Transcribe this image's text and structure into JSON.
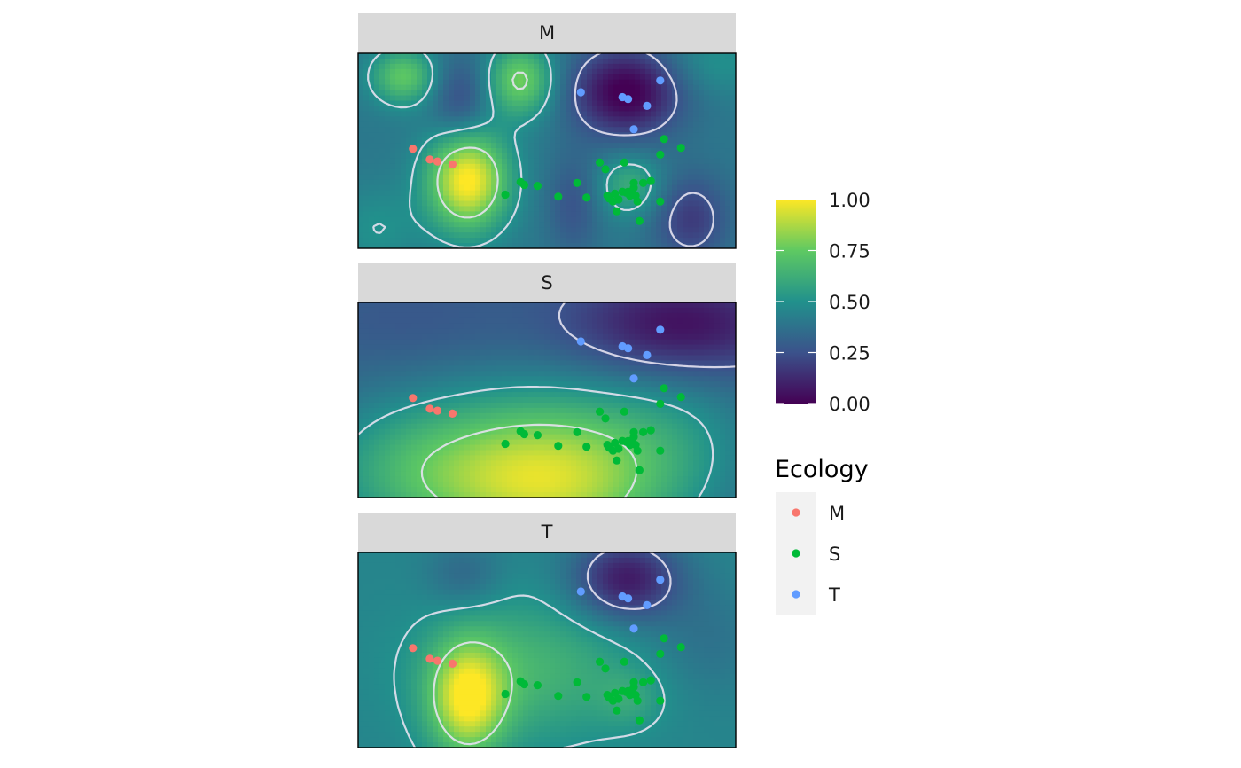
{
  "chart_data": {
    "type": "heatmap",
    "layout": "facet_wrap_one_column",
    "x_range": [
      0,
      1
    ],
    "y_range": [
      0,
      1
    ],
    "fill_scale": {
      "palette": "viridis",
      "limits": [
        0,
        1
      ],
      "breaks": [
        0,
        0.25,
        0.5,
        0.75,
        1
      ],
      "labels": [
        "0.00",
        "0.25",
        "0.50",
        "0.75",
        "1.00"
      ],
      "stops": [
        "#440154",
        "#3b528b",
        "#21918c",
        "#5ec962",
        "#fde725"
      ]
    },
    "contour_color": "#e6e2f0",
    "contour_levels": [
      0.25,
      0.5,
      0.75
    ],
    "panels": [
      {
        "strip": "M",
        "surface_bumps": [
          {
            "x": 0.29,
            "y": 0.35,
            "sx": 0.075,
            "sy": 0.18,
            "a": 0.62
          },
          {
            "x": 0.43,
            "y": 0.86,
            "sx": 0.06,
            "sy": 0.13,
            "a": 0.38
          },
          {
            "x": 0.12,
            "y": 0.88,
            "sx": 0.06,
            "sy": 0.1,
            "a": 0.34
          },
          {
            "x": 0.72,
            "y": 0.32,
            "sx": 0.06,
            "sy": 0.11,
            "a": 0.22
          },
          {
            "x": 0.71,
            "y": 0.8,
            "sx": 0.1,
            "sy": 0.16,
            "a": -0.42
          },
          {
            "x": 0.27,
            "y": 0.75,
            "sx": 0.055,
            "sy": 0.16,
            "a": -0.18
          },
          {
            "x": 0.88,
            "y": 0.15,
            "sx": 0.07,
            "sy": 0.16,
            "a": -0.22
          },
          {
            "x": 0.57,
            "y": 0.22,
            "sx": 0.05,
            "sy": 0.18,
            "a": -0.14
          },
          {
            "x": 0.95,
            "y": 0.95,
            "sx": 0.1,
            "sy": 0.12,
            "a": 0.1
          },
          {
            "x": 0.05,
            "y": 0.1,
            "sx": 0.08,
            "sy": 0.15,
            "a": 0.1
          }
        ],
        "surface_base": 0.4
      },
      {
        "strip": "S",
        "surface_bumps": [
          {
            "x": 0.5,
            "y": 0.1,
            "sx": 0.24,
            "sy": 0.3,
            "a": 0.62
          },
          {
            "x": 0.12,
            "y": 0.15,
            "sx": 0.18,
            "sy": 0.25,
            "a": 0.2
          },
          {
            "x": 0.85,
            "y": 0.35,
            "sx": 0.15,
            "sy": 0.25,
            "a": 0.1
          },
          {
            "x": 0.85,
            "y": 0.88,
            "sx": 0.2,
            "sy": 0.18,
            "a": -0.28
          },
          {
            "x": 0.15,
            "y": 0.9,
            "sx": 0.2,
            "sy": 0.18,
            "a": -0.05
          }
        ],
        "surface_base": 0.32
      },
      {
        "strip": "T",
        "surface_bumps": [
          {
            "x": 0.29,
            "y": 0.25,
            "sx": 0.07,
            "sy": 0.2,
            "a": 0.5
          },
          {
            "x": 0.45,
            "y": 0.4,
            "sx": 0.2,
            "sy": 0.25,
            "a": 0.2
          },
          {
            "x": 0.71,
            "y": 0.86,
            "sx": 0.1,
            "sy": 0.15,
            "a": -0.38
          },
          {
            "x": 0.28,
            "y": 0.88,
            "sx": 0.07,
            "sy": 0.12,
            "a": -0.12
          },
          {
            "x": 0.72,
            "y": 0.25,
            "sx": 0.06,
            "sy": 0.1,
            "a": 0.1
          },
          {
            "x": 0.92,
            "y": 0.55,
            "sx": 0.1,
            "sy": 0.2,
            "a": -0.08
          }
        ],
        "surface_base": 0.45
      }
    ],
    "points": {
      "M": [
        [
          0.145,
          0.51
        ],
        [
          0.19,
          0.455
        ],
        [
          0.21,
          0.445
        ],
        [
          0.25,
          0.43
        ]
      ],
      "S": [
        [
          0.39,
          0.275
        ],
        [
          0.43,
          0.34
        ],
        [
          0.44,
          0.325
        ],
        [
          0.475,
          0.32
        ],
        [
          0.53,
          0.265
        ],
        [
          0.58,
          0.335
        ],
        [
          0.605,
          0.26
        ],
        [
          0.64,
          0.44
        ],
        [
          0.655,
          0.405
        ],
        [
          0.66,
          0.27
        ],
        [
          0.665,
          0.255
        ],
        [
          0.675,
          0.24
        ],
        [
          0.68,
          0.28
        ],
        [
          0.685,
          0.19
        ],
        [
          0.69,
          0.25
        ],
        [
          0.7,
          0.29
        ],
        [
          0.705,
          0.44
        ],
        [
          0.71,
          0.285
        ],
        [
          0.715,
          0.29
        ],
        [
          0.72,
          0.27
        ],
        [
          0.725,
          0.29
        ],
        [
          0.73,
          0.31
        ],
        [
          0.73,
          0.335
        ],
        [
          0.735,
          0.27
        ],
        [
          0.74,
          0.24
        ],
        [
          0.745,
          0.14
        ],
        [
          0.755,
          0.335
        ],
        [
          0.775,
          0.345
        ],
        [
          0.8,
          0.24
        ],
        [
          0.8,
          0.48
        ],
        [
          0.81,
          0.56
        ],
        [
          0.855,
          0.515
        ]
      ],
      "T": [
        [
          0.59,
          0.8
        ],
        [
          0.7,
          0.775
        ],
        [
          0.715,
          0.765
        ],
        [
          0.73,
          0.61
        ],
        [
          0.765,
          0.73
        ],
        [
          0.8,
          0.86
        ]
      ]
    },
    "legend": {
      "fill_title": "",
      "color_title": "Ecology",
      "items": [
        {
          "label": "M",
          "color": "#f8766d"
        },
        {
          "label": "S",
          "color": "#00ba38"
        },
        {
          "label": "T",
          "color": "#619cff"
        }
      ]
    }
  }
}
